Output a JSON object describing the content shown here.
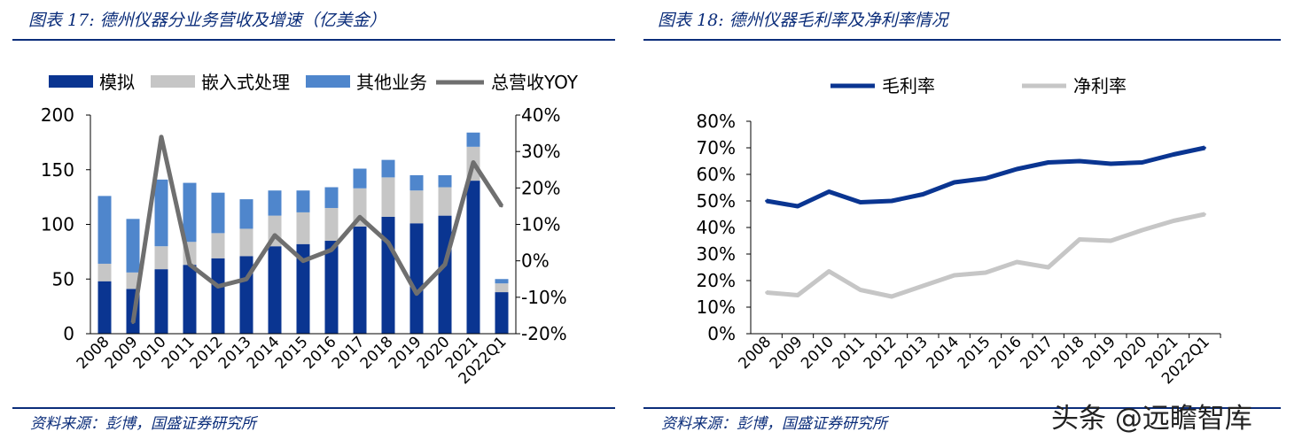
{
  "left": {
    "title": "图表 17:  德州仪器分业务营收及增速（亿美金）",
    "source": "资料来源：彭博，国盛证券研究所"
  },
  "right": {
    "title": "图表 18:  德州仪器毛利率及净利率情况",
    "source": "资料来源：彭博，国盛证券研究所"
  },
  "watermark": "头条 @远瞻智库",
  "colors": {
    "analog": "#0a3591",
    "embedded": "#c6c6c6",
    "other": "#4f86cc",
    "yoy": "#6f6f6f",
    "gross": "#0a3591",
    "net": "#c6c6c6",
    "rule": "#0b2d7a"
  },
  "chart_data": [
    {
      "type": "bar",
      "stacked": true,
      "categories": [
        "2008",
        "2009",
        "2010",
        "2011",
        "2012",
        "2013",
        "2014",
        "2015",
        "2016",
        "2017",
        "2018",
        "2019",
        "2020",
        "2021",
        "2022Q1"
      ],
      "series": [
        {
          "name": "模拟",
          "values": [
            48,
            41,
            59,
            63,
            69,
            71,
            80,
            82,
            85,
            98,
            107,
            101,
            108,
            140,
            38
          ]
        },
        {
          "name": "嵌入式处理",
          "values": [
            16,
            15,
            21,
            21,
            23,
            25,
            28,
            29,
            30,
            35,
            36,
            30,
            26,
            31,
            8
          ]
        },
        {
          "name": "其他业务",
          "values": [
            62,
            49,
            61,
            54,
            37,
            27,
            23,
            20,
            19,
            18,
            16,
            14,
            11,
            13,
            4
          ]
        }
      ],
      "line_series": [
        {
          "name": "总营收YOY",
          "axis": "right",
          "values": [
            -17,
            34,
            -1,
            -7,
            -5,
            7,
            0,
            3,
            12,
            5,
            -9,
            -1,
            27,
            15
          ]
        }
      ],
      "line_categories": [
        "2009",
        "2010",
        "2011",
        "2012",
        "2013",
        "2014",
        "2015",
        "2016",
        "2017",
        "2018",
        "2019",
        "2020",
        "2021",
        "2022Q1"
      ],
      "yticks_left": [
        "0",
        "50",
        "100",
        "150",
        "200"
      ],
      "yticks_right": [
        "-20%",
        "-10%",
        "0%",
        "10%",
        "20%",
        "30%",
        "40%"
      ],
      "ylim_left": [
        0,
        200
      ],
      "ylim_right": [
        -20,
        40
      ],
      "legend": [
        "模拟",
        "嵌入式处理",
        "其他业务",
        "总营收YOY"
      ],
      "legend_position": "top",
      "grid": false
    },
    {
      "type": "line",
      "categories": [
        "2008",
        "2009",
        "2010",
        "2011",
        "2012",
        "2013",
        "2014",
        "2015",
        "2016",
        "2017",
        "2018",
        "2019",
        "2020",
        "2021",
        "2022Q1"
      ],
      "series": [
        {
          "name": "毛利率",
          "values": [
            50,
            48,
            53.5,
            49.5,
            50,
            52.5,
            57,
            58.5,
            62,
            64.5,
            65,
            64,
            64.5,
            67.5,
            70
          ]
        },
        {
          "name": "净利率",
          "values": [
            15.5,
            14.5,
            23.5,
            16.5,
            14,
            18,
            22,
            23,
            27,
            25,
            35.5,
            35,
            39,
            42.5,
            45
          ]
        }
      ],
      "yticks": [
        "0%",
        "10%",
        "20%",
        "30%",
        "40%",
        "50%",
        "60%",
        "70%",
        "80%"
      ],
      "ylim": [
        0,
        80
      ],
      "legend": [
        "毛利率",
        "净利率"
      ],
      "legend_position": "top",
      "grid": false
    }
  ]
}
